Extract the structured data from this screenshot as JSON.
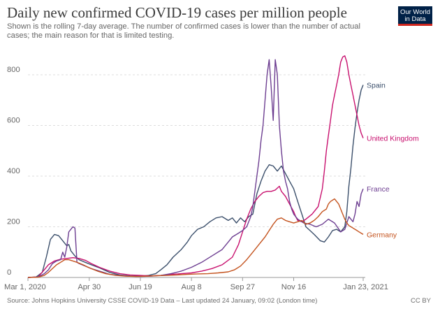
{
  "header": {
    "title": "Daily new confirmed COVID-19 cases per million people",
    "subtitle": "Shown is the rolling 7-day average. The number of confirmed cases is lower than the number of actual cases; the main reason for that is limited testing.",
    "logo_line1": "Our World",
    "logo_line2": "in Data",
    "logo_color": "#002147",
    "logo_accent": "#ce261e"
  },
  "footer": {
    "source": "Source: Johns Hopkins University CSSE COVID-19 Data – Last updated 24 January, 09:02 (London time)",
    "license": "CC BY"
  },
  "chart_data": {
    "type": "line",
    "x_axis": {
      "start": "Mar 1, 2020",
      "end": "Jan 23, 2021",
      "tick_labels": [
        "Mar 1, 2020",
        "Apr 30",
        "Jun 19",
        "Aug 8",
        "Sep 27",
        "Nov 16",
        "Jan 23, 2021"
      ],
      "tick_days": [
        0,
        60,
        110,
        160,
        210,
        260,
        328
      ]
    },
    "y_axis": {
      "ylim": [
        0,
        880
      ],
      "ticks": [
        0,
        200,
        400,
        600,
        800
      ]
    },
    "grid": "horizontal dashed",
    "series": [
      {
        "name": "Spain",
        "color": "#3b4f6b",
        "points": [
          [
            0,
            0
          ],
          [
            8,
            2
          ],
          [
            14,
            20
          ],
          [
            18,
            80
          ],
          [
            22,
            150
          ],
          [
            26,
            170
          ],
          [
            30,
            165
          ],
          [
            34,
            145
          ],
          [
            38,
            125
          ],
          [
            40,
            130
          ],
          [
            42,
            105
          ],
          [
            46,
            85
          ],
          [
            50,
            70
          ],
          [
            56,
            60
          ],
          [
            62,
            50
          ],
          [
            70,
            38
          ],
          [
            80,
            20
          ],
          [
            90,
            10
          ],
          [
            100,
            6
          ],
          [
            110,
            5
          ],
          [
            118,
            8
          ],
          [
            125,
            15
          ],
          [
            130,
            30
          ],
          [
            136,
            50
          ],
          [
            142,
            80
          ],
          [
            150,
            110
          ],
          [
            156,
            140
          ],
          [
            160,
            165
          ],
          [
            166,
            190
          ],
          [
            172,
            200
          ],
          [
            178,
            220
          ],
          [
            184,
            235
          ],
          [
            190,
            240
          ],
          [
            196,
            225
          ],
          [
            200,
            235
          ],
          [
            204,
            215
          ],
          [
            208,
            235
          ],
          [
            212,
            220
          ],
          [
            216,
            240
          ],
          [
            220,
            250
          ],
          [
            224,
            330
          ],
          [
            228,
            380
          ],
          [
            232,
            420
          ],
          [
            236,
            445
          ],
          [
            240,
            440
          ],
          [
            244,
            420
          ],
          [
            248,
            440
          ],
          [
            252,
            410
          ],
          [
            256,
            380
          ],
          [
            260,
            350
          ],
          [
            264,
            300
          ],
          [
            268,
            250
          ],
          [
            272,
            200
          ],
          [
            276,
            185
          ],
          [
            280,
            170
          ],
          [
            286,
            145
          ],
          [
            290,
            140
          ],
          [
            294,
            160
          ],
          [
            298,
            185
          ],
          [
            302,
            190
          ],
          [
            306,
            180
          ],
          [
            310,
            200
          ],
          [
            312,
            260
          ],
          [
            314,
            360
          ],
          [
            316,
            430
          ],
          [
            318,
            520
          ],
          [
            320,
            590
          ],
          [
            322,
            650
          ],
          [
            324,
            700
          ],
          [
            326,
            740
          ],
          [
            328,
            760
          ]
        ]
      },
      {
        "name": "United Kingdom",
        "color": "#c8106e",
        "points": [
          [
            0,
            0
          ],
          [
            10,
            2
          ],
          [
            16,
            30
          ],
          [
            20,
            50
          ],
          [
            26,
            65
          ],
          [
            32,
            72
          ],
          [
            38,
            75
          ],
          [
            44,
            78
          ],
          [
            50,
            75
          ],
          [
            56,
            68
          ],
          [
            62,
            55
          ],
          [
            70,
            40
          ],
          [
            80,
            25
          ],
          [
            90,
            15
          ],
          [
            100,
            10
          ],
          [
            110,
            8
          ],
          [
            120,
            6
          ],
          [
            130,
            8
          ],
          [
            140,
            12
          ],
          [
            150,
            15
          ],
          [
            160,
            18
          ],
          [
            170,
            25
          ],
          [
            180,
            35
          ],
          [
            190,
            50
          ],
          [
            200,
            80
          ],
          [
            206,
            130
          ],
          [
            210,
            180
          ],
          [
            214,
            230
          ],
          [
            218,
            270
          ],
          [
            222,
            300
          ],
          [
            226,
            320
          ],
          [
            230,
            335
          ],
          [
            234,
            340
          ],
          [
            238,
            340
          ],
          [
            242,
            345
          ],
          [
            246,
            360
          ],
          [
            248,
            340
          ],
          [
            252,
            320
          ],
          [
            256,
            290
          ],
          [
            260,
            260
          ],
          [
            262,
            240
          ],
          [
            264,
            225
          ],
          [
            268,
            220
          ],
          [
            272,
            230
          ],
          [
            278,
            250
          ],
          [
            284,
            280
          ],
          [
            288,
            350
          ],
          [
            290,
            420
          ],
          [
            292,
            500
          ],
          [
            294,
            560
          ],
          [
            296,
            620
          ],
          [
            298,
            680
          ],
          [
            300,
            720
          ],
          [
            302,
            760
          ],
          [
            304,
            800
          ],
          [
            306,
            850
          ],
          [
            308,
            870
          ],
          [
            310,
            875
          ],
          [
            312,
            850
          ],
          [
            314,
            800
          ],
          [
            316,
            760
          ],
          [
            318,
            720
          ],
          [
            320,
            680
          ],
          [
            322,
            640
          ],
          [
            324,
            600
          ],
          [
            326,
            570
          ],
          [
            328,
            550
          ]
        ]
      },
      {
        "name": "France",
        "color": "#6d3e91",
        "points": [
          [
            0,
            0
          ],
          [
            10,
            2
          ],
          [
            16,
            15
          ],
          [
            20,
            30
          ],
          [
            24,
            55
          ],
          [
            28,
            65
          ],
          [
            32,
            70
          ],
          [
            34,
            100
          ],
          [
            36,
            80
          ],
          [
            38,
            120
          ],
          [
            40,
            180
          ],
          [
            42,
            190
          ],
          [
            44,
            200
          ],
          [
            46,
            195
          ],
          [
            48,
            60
          ],
          [
            50,
            55
          ],
          [
            56,
            45
          ],
          [
            62,
            35
          ],
          [
            70,
            25
          ],
          [
            80,
            12
          ],
          [
            90,
            8
          ],
          [
            100,
            5
          ],
          [
            110,
            4
          ],
          [
            120,
            5
          ],
          [
            130,
            8
          ],
          [
            140,
            15
          ],
          [
            150,
            25
          ],
          [
            160,
            40
          ],
          [
            170,
            60
          ],
          [
            180,
            85
          ],
          [
            190,
            110
          ],
          [
            196,
            140
          ],
          [
            200,
            160
          ],
          [
            206,
            175
          ],
          [
            210,
            185
          ],
          [
            214,
            200
          ],
          [
            218,
            240
          ],
          [
            220,
            280
          ],
          [
            222,
            340
          ],
          [
            224,
            400
          ],
          [
            226,
            460
          ],
          [
            228,
            540
          ],
          [
            230,
            600
          ],
          [
            232,
            700
          ],
          [
            234,
            800
          ],
          [
            236,
            860
          ],
          [
            238,
            750
          ],
          [
            240,
            620
          ],
          [
            242,
            860
          ],
          [
            244,
            800
          ],
          [
            246,
            600
          ],
          [
            248,
            500
          ],
          [
            250,
            420
          ],
          [
            252,
            380
          ],
          [
            254,
            350
          ],
          [
            256,
            300
          ],
          [
            258,
            270
          ],
          [
            260,
            250
          ],
          [
            264,
            230
          ],
          [
            270,
            215
          ],
          [
            276,
            210
          ],
          [
            282,
            200
          ],
          [
            288,
            210
          ],
          [
            294,
            230
          ],
          [
            300,
            215
          ],
          [
            306,
            180
          ],
          [
            310,
            190
          ],
          [
            314,
            240
          ],
          [
            316,
            230
          ],
          [
            318,
            220
          ],
          [
            320,
            250
          ],
          [
            322,
            300
          ],
          [
            324,
            280
          ],
          [
            326,
            330
          ],
          [
            328,
            350
          ]
        ]
      },
      {
        "name": "Germany",
        "color": "#c4531e",
        "points": [
          [
            0,
            0
          ],
          [
            10,
            1
          ],
          [
            16,
            8
          ],
          [
            20,
            20
          ],
          [
            24,
            35
          ],
          [
            28,
            50
          ],
          [
            32,
            60
          ],
          [
            36,
            70
          ],
          [
            40,
            70
          ],
          [
            44,
            65
          ],
          [
            48,
            60
          ],
          [
            54,
            50
          ],
          [
            60,
            38
          ],
          [
            68,
            25
          ],
          [
            76,
            15
          ],
          [
            86,
            8
          ],
          [
            96,
            5
          ],
          [
            106,
            4
          ],
          [
            116,
            5
          ],
          [
            126,
            7
          ],
          [
            136,
            8
          ],
          [
            146,
            10
          ],
          [
            156,
            12
          ],
          [
            166,
            14
          ],
          [
            176,
            15
          ],
          [
            186,
            18
          ],
          [
            196,
            22
          ],
          [
            202,
            30
          ],
          [
            208,
            45
          ],
          [
            214,
            70
          ],
          [
            220,
            100
          ],
          [
            226,
            130
          ],
          [
            232,
            160
          ],
          [
            236,
            185
          ],
          [
            240,
            210
          ],
          [
            244,
            230
          ],
          [
            248,
            235
          ],
          [
            252,
            225
          ],
          [
            256,
            220
          ],
          [
            260,
            215
          ],
          [
            264,
            220
          ],
          [
            268,
            225
          ],
          [
            272,
            210
          ],
          [
            276,
            215
          ],
          [
            280,
            225
          ],
          [
            284,
            240
          ],
          [
            288,
            260
          ],
          [
            292,
            270
          ],
          [
            294,
            290
          ],
          [
            296,
            300
          ],
          [
            298,
            305
          ],
          [
            300,
            310
          ],
          [
            302,
            300
          ],
          [
            304,
            290
          ],
          [
            306,
            270
          ],
          [
            308,
            250
          ],
          [
            310,
            230
          ],
          [
            312,
            215
          ],
          [
            314,
            205
          ],
          [
            316,
            200
          ],
          [
            318,
            195
          ],
          [
            320,
            190
          ],
          [
            322,
            185
          ],
          [
            324,
            180
          ],
          [
            326,
            175
          ],
          [
            328,
            170
          ]
        ]
      }
    ]
  }
}
